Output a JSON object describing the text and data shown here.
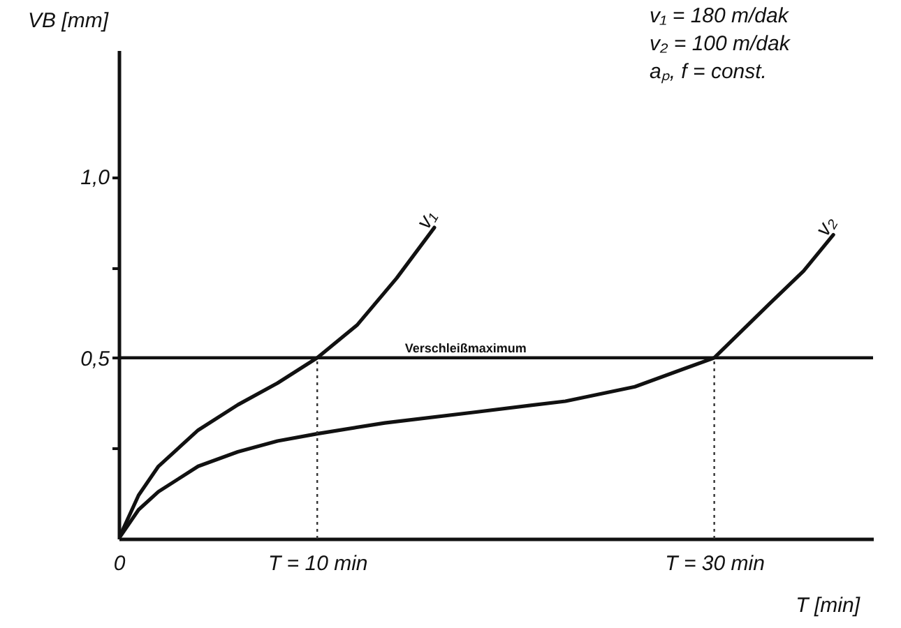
{
  "chart_data": {
    "type": "line",
    "xlabel": "T [min]",
    "ylabel": "VB [mm]",
    "xlim": [
      0,
      38
    ],
    "ylim": [
      0,
      1.35
    ],
    "xticks": [
      {
        "value": 0,
        "label": "0"
      },
      {
        "value": 10,
        "label": "T = 10 min"
      },
      {
        "value": 30,
        "label": "T = 30 min"
      }
    ],
    "yticks": [
      {
        "value": 0.25,
        "label": null
      },
      {
        "value": 0.5,
        "label": "0,5"
      },
      {
        "value": 0.75,
        "label": null
      },
      {
        "value": 1,
        "label": "1,0"
      }
    ],
    "series": [
      {
        "name": "v₁",
        "color": "#111111",
        "x": [
          0,
          1,
          2,
          4,
          6,
          8,
          10,
          12,
          14,
          15.9
        ],
        "values": [
          0,
          0.12,
          0.2,
          0.3,
          0.37,
          0.43,
          0.5,
          0.59,
          0.72,
          0.86
        ]
      },
      {
        "name": "v₂",
        "color": "#111111",
        "x": [
          0,
          1,
          2,
          4,
          6,
          8,
          10,
          13.4,
          18,
          22.5,
          26,
          28.5,
          30,
          32.8,
          34.5,
          36
        ],
        "values": [
          0,
          0.08,
          0.13,
          0.2,
          0.24,
          0.27,
          0.29,
          0.32,
          0.35,
          0.38,
          0.42,
          0.47,
          0.5,
          0.65,
          0.74,
          0.84
        ]
      }
    ],
    "ref_lines": [
      {
        "axis": "y",
        "value": 0.5,
        "label": "Verschleißmaximum"
      },
      {
        "axis": "x",
        "value": 10,
        "label": null,
        "line_style": "dotted"
      },
      {
        "axis": "x",
        "value": 30,
        "label": null,
        "line_style": "dotted"
      }
    ],
    "annotations": [
      "v₁ = 180 m/dak",
      "v₂ = 100 m/dak",
      "aₚ, f = const."
    ],
    "grid": false,
    "line_style": "solid",
    "marker": "none"
  }
}
